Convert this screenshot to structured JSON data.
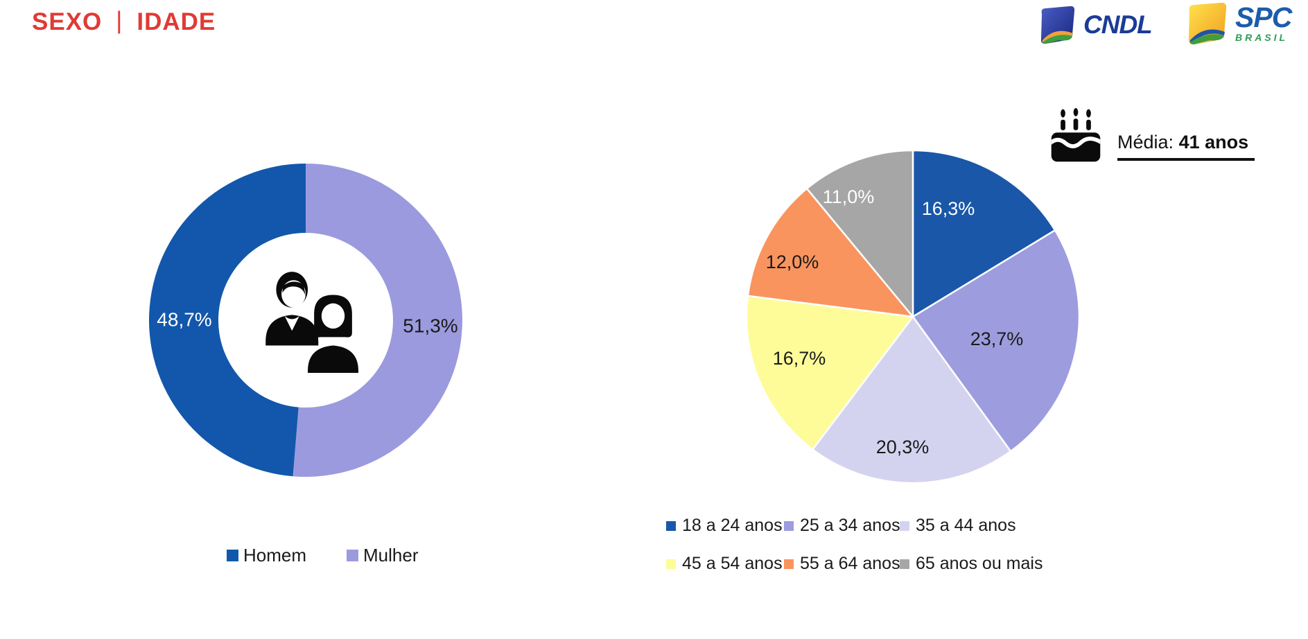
{
  "slide_title": {
    "left": "SEXO",
    "separator": "|",
    "right": "IDADE",
    "color": "#e03a35"
  },
  "logos": {
    "cndl": {
      "label": "CNDL",
      "text_color": "#1b3b97"
    },
    "spc": {
      "label": "SPC",
      "sublabel": "BRASIL",
      "text_color": "#1b5cab",
      "sublabel_color": "#2e9b55"
    }
  },
  "chart_data": [
    {
      "type": "pie",
      "variant": "donut",
      "title": "SEXO",
      "legend_position": "bottom",
      "center_icon": "couple-icon",
      "clockwise_from_top": [
        "Mulher",
        "Homem"
      ],
      "slices": [
        {
          "label": "Homem",
          "value": 48.7,
          "display": "48,7%",
          "color": "#1257ab",
          "label_color": "#ffffff"
        },
        {
          "label": "Mulher",
          "value": 51.3,
          "display": "51,3%",
          "color": "#9c9ade",
          "label_color": "#1a1a1a"
        }
      ]
    },
    {
      "type": "pie",
      "title": "IDADE",
      "legend_position": "bottom",
      "annotation": {
        "icon": "birthday-cake-icon",
        "prefix": "Média:",
        "value": "41 anos"
      },
      "clockwise_from_top": [
        "18 a 24 anos",
        "25 a 34 anos",
        "35 a 44 anos",
        "45 a 54 anos",
        "55 a 64 anos",
        "65 anos ou mais"
      ],
      "slices": [
        {
          "label": "18 a 24 anos",
          "value": 16.3,
          "display": "16,3%",
          "color": "#1a57a8",
          "label_color": "#ffffff"
        },
        {
          "label": "25 a 34 anos",
          "value": 23.7,
          "display": "23,7%",
          "color": "#9d9cde",
          "label_color": "#1a1a1a"
        },
        {
          "label": "35 a 44 anos",
          "value": 20.3,
          "display": "20,3%",
          "color": "#d4d3ef",
          "label_color": "#1a1a1a"
        },
        {
          "label": "45 a 54 anos",
          "value": 16.7,
          "display": "16,7%",
          "color": "#fdfc99",
          "label_color": "#1a1a1a"
        },
        {
          "label": "55 a 64 anos",
          "value": 12.0,
          "display": "12,0%",
          "color": "#f9945e",
          "label_color": "#1a1a1a"
        },
        {
          "label": "65 anos ou mais",
          "value": 11.0,
          "display": "11,0%",
          "color": "#a6a6a6",
          "label_color": "#ffffff"
        }
      ]
    }
  ]
}
